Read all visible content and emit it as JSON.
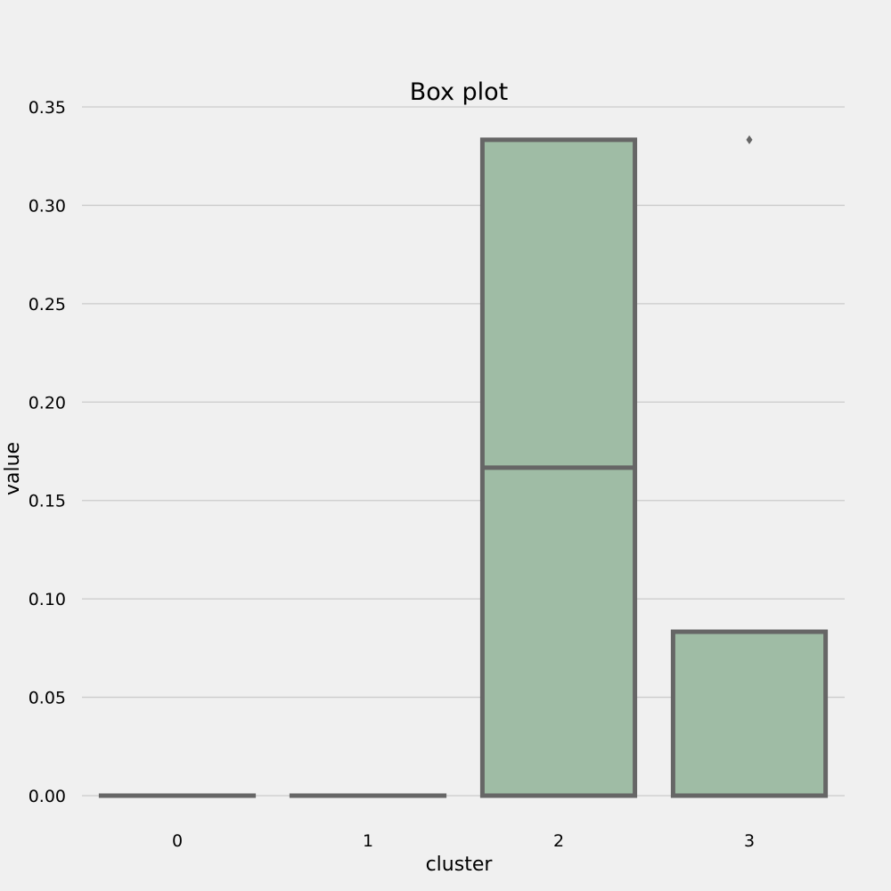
{
  "chart_data": {
    "type": "box",
    "title": "Box plot",
    "xlabel": "cluster",
    "ylabel": "value",
    "categories": [
      "0",
      "1",
      "2",
      "3"
    ],
    "ylim": [
      -0.005,
      0.35
    ],
    "yticks": [
      0.0,
      0.05,
      0.1,
      0.15,
      0.2,
      0.25,
      0.3,
      0.35
    ],
    "ytick_labels": [
      "0.00",
      "0.05",
      "0.10",
      "0.15",
      "0.20",
      "0.25",
      "0.30",
      "0.35"
    ],
    "grid": "horizontal",
    "box_color": "#9fbca5",
    "line_color": "#666666",
    "boxes": [
      {
        "category": "0",
        "whisker_low": 0.0,
        "q1": 0.0,
        "median": 0.0,
        "q3": 0.0,
        "whisker_high": 0.0,
        "outliers": []
      },
      {
        "category": "1",
        "whisker_low": 0.0,
        "q1": 0.0,
        "median": 0.0,
        "q3": 0.0,
        "whisker_high": 0.0,
        "outliers": []
      },
      {
        "category": "2",
        "whisker_low": 0.0,
        "q1": 0.0,
        "median": 0.1667,
        "q3": 0.3333,
        "whisker_high": 0.3333,
        "outliers": []
      },
      {
        "category": "3",
        "whisker_low": 0.0,
        "q1": 0.0,
        "median": 0.0,
        "q3": 0.0833,
        "whisker_high": 0.0833,
        "outliers": [
          0.3333
        ]
      }
    ]
  }
}
